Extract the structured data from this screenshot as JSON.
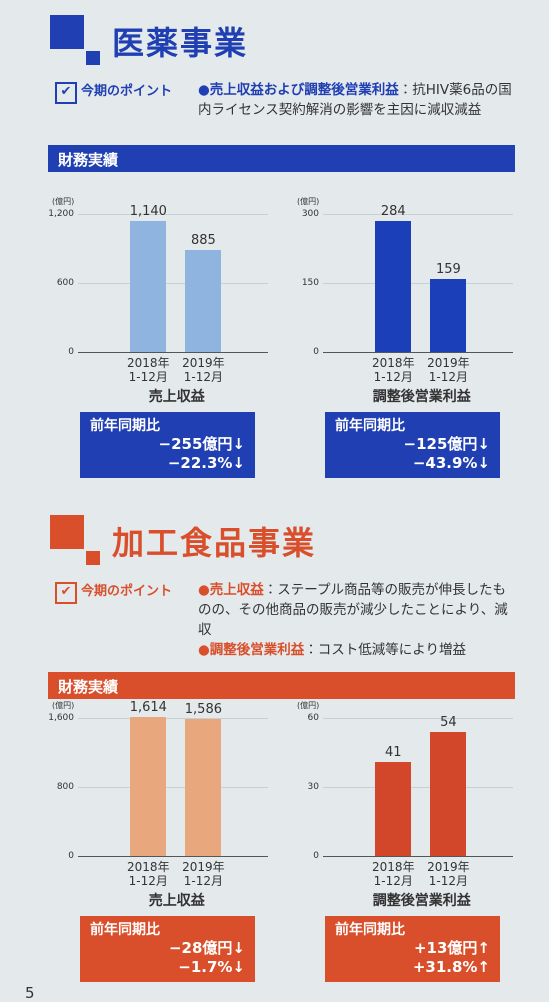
{
  "sections": [
    {
      "title": "医薬事業",
      "point_label": "今期のポイント",
      "points": [
        {
          "heading": "●売上収益および調整後営業利益",
          "text": "：抗HIV薬6品の国内ライセンス契約解消の影響を主因に減収減益"
        }
      ],
      "results_label": "財務実績",
      "charts": [
        {
          "type": "bar",
          "unit": "(億円)",
          "title": "売上収益",
          "categories": [
            "2018年\n1-12月",
            "2019年\n1-12月"
          ],
          "values": [
            1140,
            885
          ],
          "value_labels": [
            "1,140",
            "885"
          ],
          "ylim": [
            0,
            1200
          ],
          "yticks": [
            0,
            600,
            {
              "value": 1200,
              "label": "1,200"
            }
          ],
          "color": "#8fb4df",
          "yoy_label": "前年同期比",
          "yoy": [
            "−255億円↓",
            "−22.3%↓"
          ]
        },
        {
          "type": "bar",
          "unit": "(億円)",
          "title": "調整後営業利益",
          "categories": [
            "2018年\n1-12月",
            "2019年\n1-12月"
          ],
          "values": [
            284,
            159
          ],
          "ylim": [
            0,
            300
          ],
          "yticks": [
            0,
            150,
            300
          ],
          "color": "#1a3fb8",
          "yoy_label": "前年同期比",
          "yoy": [
            "−125億円↓",
            "−43.9%↓"
          ]
        }
      ]
    },
    {
      "title": "加工食品事業",
      "point_label": "今期のポイント",
      "points": [
        {
          "heading": "●売上収益",
          "text": "：ステープル商品等の販売が伸長したものの、その他商品の販売が減少したことにより、減収"
        },
        {
          "heading": "●調整後営業利益",
          "text": "：コスト低減等により増益"
        }
      ],
      "results_label": "財務実績",
      "charts": [
        {
          "type": "bar",
          "unit": "(億円)",
          "title": "売上収益",
          "categories": [
            "2018年\n1-12月",
            "2019年\n1-12月"
          ],
          "values": [
            1614,
            1586
          ],
          "value_labels": [
            "1,614",
            "1,586"
          ],
          "ylim": [
            0,
            1600
          ],
          "yticks": [
            0,
            800,
            {
              "value": 1600,
              "label": "1,600"
            }
          ],
          "color": "#e8a77c",
          "yoy_label": "前年同期比",
          "yoy": [
            "−28億円↓",
            "−1.7%↓"
          ]
        },
        {
          "type": "bar",
          "unit": "(億円)",
          "title": "調整後営業利益",
          "categories": [
            "2018年\n1-12月",
            "2019年\n1-12月"
          ],
          "values": [
            41,
            54
          ],
          "ylim": [
            0,
            60
          ],
          "yticks": [
            0,
            30,
            60
          ],
          "color": "#d2462a",
          "yoy_label": "前年同期比",
          "yoy": [
            "+13億円↑",
            "+31.8%↑"
          ]
        }
      ]
    }
  ],
  "page_number": "5"
}
